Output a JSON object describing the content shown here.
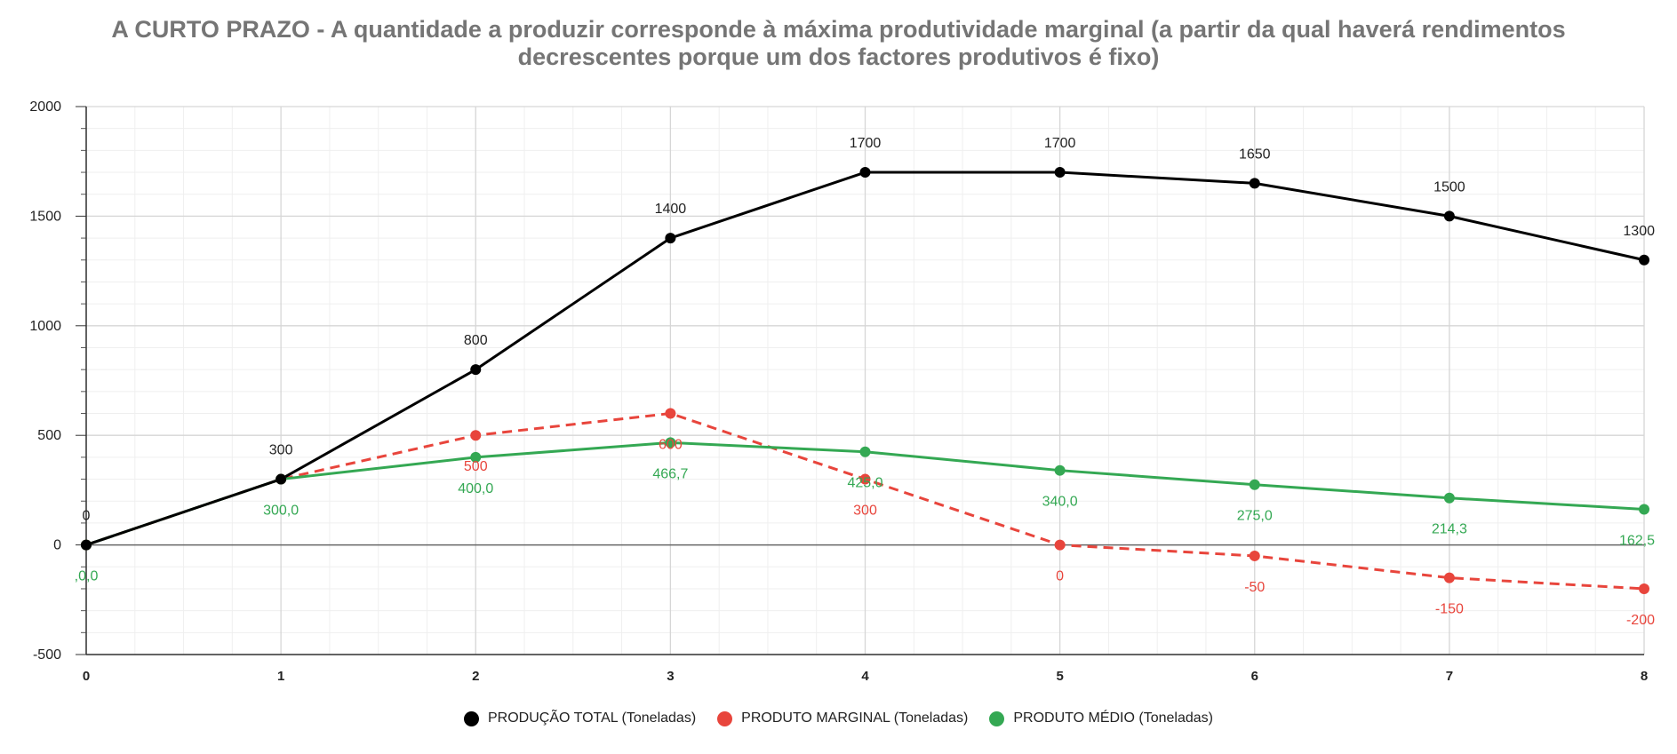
{
  "chart_data": {
    "type": "line",
    "title_lines": [
      "A CURTO PRAZO - A quantidade a produzir corresponde à máxima produtividade marginal (a partir da qual haverá rendimentos",
      "decrescentes porque um dos factores produtivos é fixo)"
    ],
    "xlabel": "",
    "ylabel": "",
    "x": [
      0,
      1,
      2,
      3,
      4,
      5,
      6,
      7,
      8
    ],
    "x_tick_labels": [
      "0",
      "1",
      "2",
      "3",
      "4",
      "5",
      "6",
      "7",
      "8"
    ],
    "xlim": [
      0,
      8
    ],
    "ylim": [
      -500,
      2000
    ],
    "y_tick_values": [
      -500,
      0,
      500,
      1000,
      1500,
      2000
    ],
    "y_tick_labels": [
      "-500",
      "0",
      "500",
      "1000",
      "1500",
      "2000"
    ],
    "grid": true,
    "legend_position": "bottom",
    "series": [
      {
        "name": "PRODUÇÃO TOTAL (Toneladas)",
        "color": "#000000",
        "dashed": false,
        "label_side": "above",
        "values": [
          0,
          300,
          800,
          1400,
          1700,
          1700,
          1650,
          1500,
          1300
        ],
        "data_labels": [
          "0",
          "300",
          "800",
          "1400",
          "1700",
          "1700",
          "1650",
          "1500",
          "1300"
        ]
      },
      {
        "name": "PRODUTO MARGINAL (Toneladas)",
        "color": "#e8453c",
        "dashed": true,
        "label_side": "below",
        "values": [
          0,
          300,
          500,
          600,
          300,
          0,
          -50,
          -150,
          -200
        ],
        "data_labels": [
          "",
          "",
          "500",
          "600",
          "300",
          "0",
          "-50",
          "-150",
          "-200"
        ]
      },
      {
        "name": "PRODUTO MÉDIO (Toneladas)",
        "color": "#34a853",
        "dashed": false,
        "label_side": "below",
        "values": [
          0,
          300,
          400,
          466.7,
          425,
          340,
          275,
          214.3,
          162.5
        ],
        "data_labels": [
          ",0,0",
          "300,0",
          "400,0",
          "466,7",
          "425,0",
          "340,0",
          "275,0",
          "214,3",
          "162,5"
        ]
      }
    ]
  }
}
